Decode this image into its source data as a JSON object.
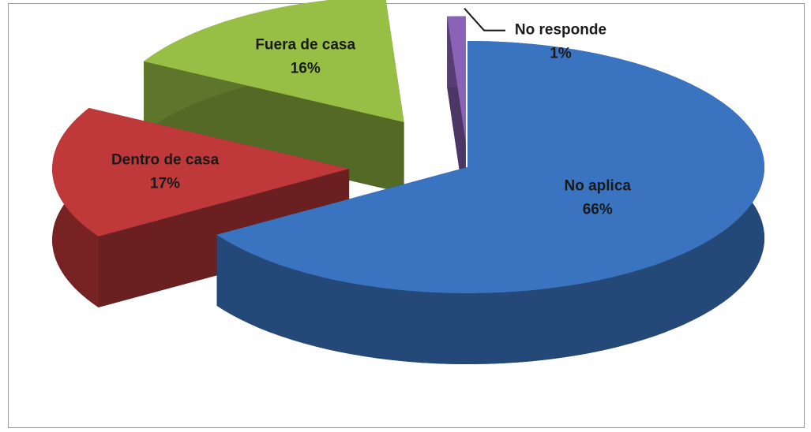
{
  "chart_data": {
    "type": "pie",
    "categories": [
      "No aplica",
      "Dentro de casa",
      "Fuera de casa",
      "No responde"
    ],
    "values": [
      66,
      17,
      16,
      1
    ],
    "value_labels": [
      "66%",
      "17%",
      "16%",
      "1%"
    ],
    "colors": [
      "#3a74c0",
      "#c0393a",
      "#98bf45",
      "#8a62b8"
    ],
    "three_d": true,
    "exploded": true
  }
}
